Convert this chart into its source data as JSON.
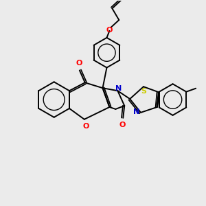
{
  "background_color": "#ebebeb",
  "bond_color": "#000000",
  "atom_colors": {
    "O": "#ff0000",
    "N": "#0000cc",
    "S": "#cccc00",
    "C": "#000000"
  },
  "figsize": [
    3.0,
    3.0
  ],
  "dpi": 100
}
